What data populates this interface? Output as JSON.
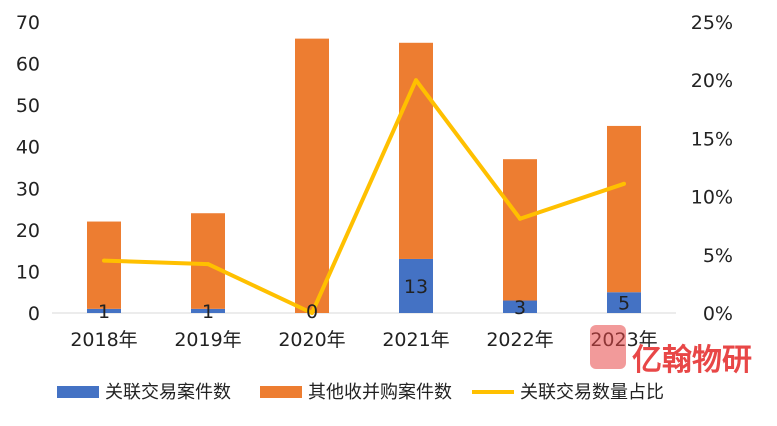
{
  "chart_data": {
    "type": "bar",
    "categories": [
      "2018年",
      "2019年",
      "2020年",
      "2021年",
      "2022年",
      "2023年"
    ],
    "series": [
      {
        "name": "关联交易案件数",
        "type": "bar",
        "stack": "total",
        "axis": "left",
        "color": "#4472c4",
        "values": [
          1,
          1,
          0,
          13,
          3,
          5
        ]
      },
      {
        "name": "其他收并购案件数",
        "type": "bar",
        "stack": "total",
        "axis": "left",
        "color": "#ed7d31",
        "values": [
          21,
          23,
          66,
          52,
          34,
          40
        ]
      },
      {
        "name": "关联交易数量占比",
        "type": "line",
        "axis": "right",
        "color": "#ffc000",
        "values": [
          0.045,
          0.042,
          0.0,
          0.2,
          0.081,
          0.111
        ]
      }
    ],
    "data_labels": [
      "1",
      "1",
      "0",
      "13",
      "3",
      "5"
    ],
    "y_left": {
      "min": 0,
      "max": 70,
      "ticks": [
        "0",
        "10",
        "20",
        "30",
        "40",
        "50",
        "60",
        "70"
      ]
    },
    "y_right": {
      "min": 0,
      "max": 0.25,
      "ticks": [
        "0%",
        "5%",
        "10%",
        "15%",
        "20%",
        "25%"
      ]
    },
    "grid": false,
    "legend_position": "bottom"
  },
  "watermark": {
    "text": "亿翰物研",
    "color": "#e84747"
  }
}
